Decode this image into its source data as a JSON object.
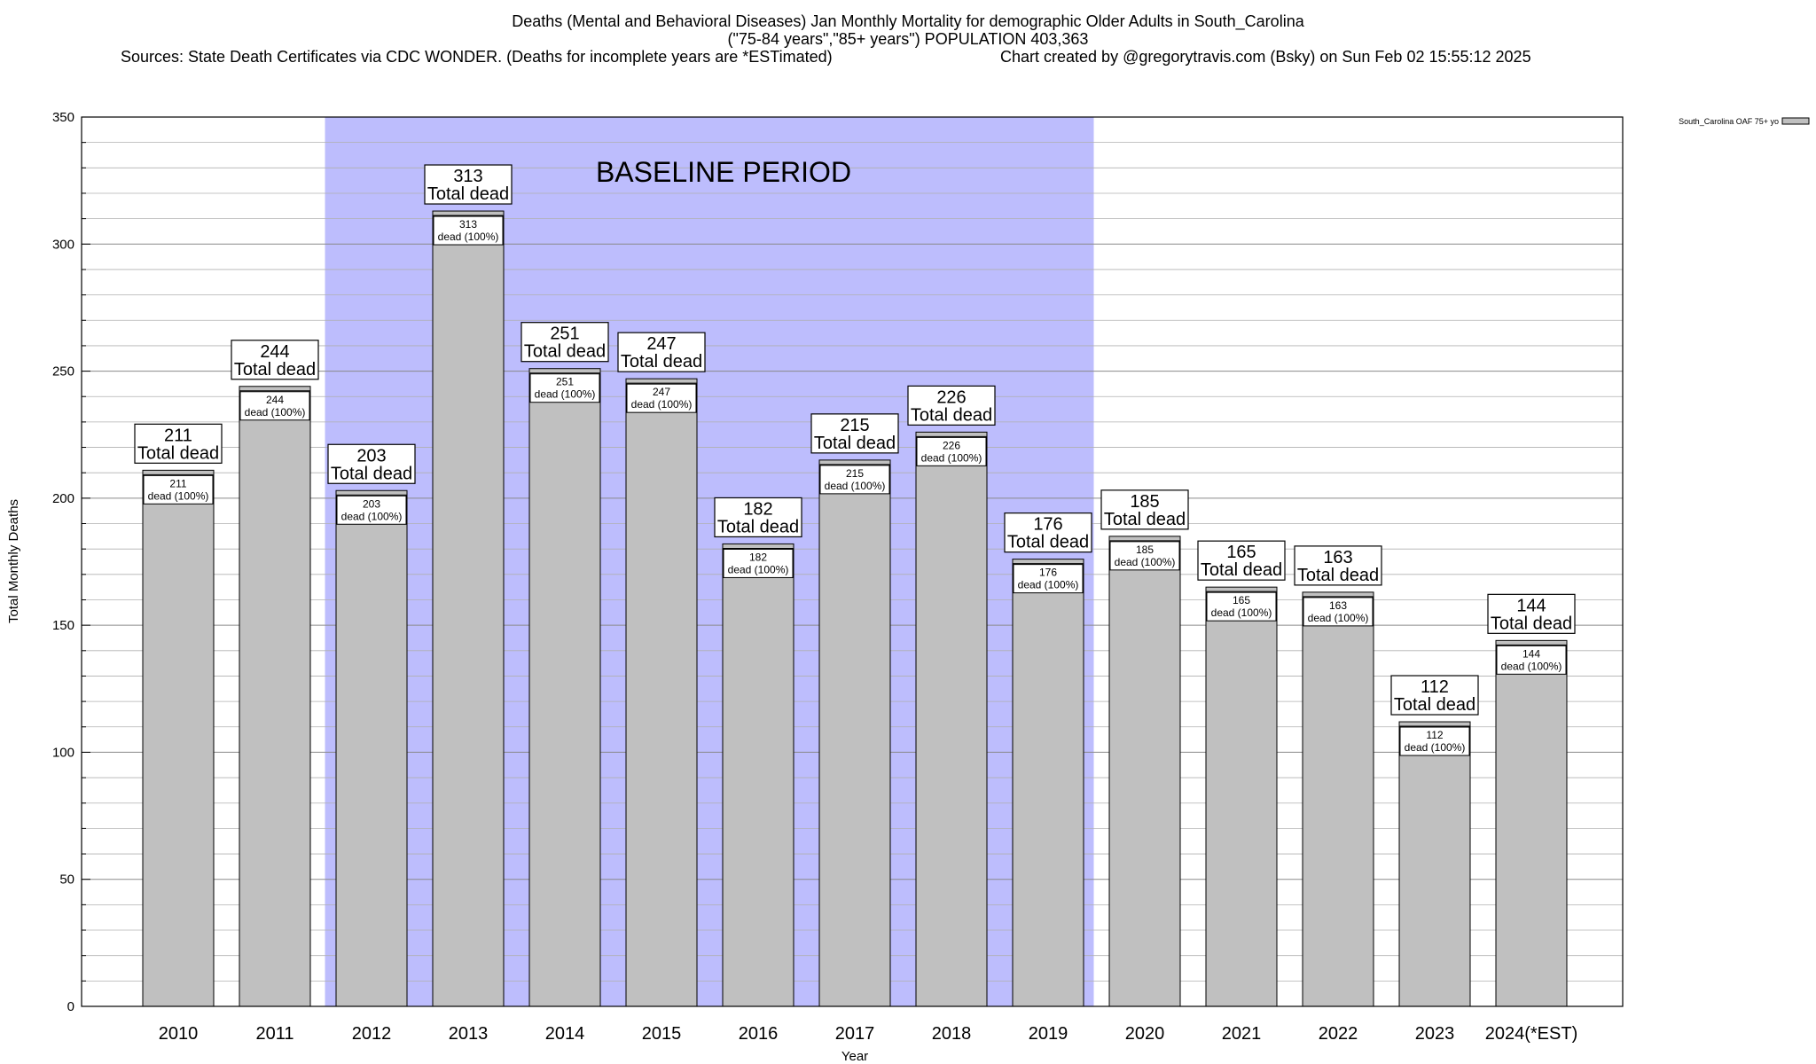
{
  "title": {
    "line1": "Deaths (Mental and Behavioral Diseases) Jan Monthly Mortality for demographic Older Adults in South_Carolina",
    "line2": "(\"75-84 years\",\"85+ years\") POPULATION 403,363",
    "line3": "Sources: State Death Certificates via CDC WONDER. (Deaths for incomplete years are *ESTimated)",
    "line4": "Chart created by @gregorytravis.com (Bsky) on Sun Feb 02 15:55:12 2025"
  },
  "chart_data": {
    "type": "bar",
    "xlabel": "Year",
    "ylabel": "Total Monthly Deaths",
    "ylim": [
      0,
      350
    ],
    "yticks": [
      0,
      50,
      100,
      150,
      200,
      250,
      300,
      350
    ],
    "categories": [
      "2010",
      "2011",
      "2012",
      "2013",
      "2014",
      "2015",
      "2016",
      "2017",
      "2018",
      "2019",
      "2020",
      "2021",
      "2022",
      "2023",
      "2024(*EST)"
    ],
    "series": [
      {
        "name": "South_Carolina OAF 75+ yo",
        "values": [
          211,
          244,
          203,
          313,
          251,
          247,
          182,
          215,
          226,
          176,
          185,
          165,
          163,
          112,
          144
        ]
      }
    ],
    "top_label_text": "Total dead",
    "inner_label_text": "dead (100%)",
    "baseline_region": {
      "label": "BASELINE PERIOD",
      "from_category": "2012",
      "to_category": "2019"
    },
    "legend_position": "top-right",
    "grid": true
  },
  "colors": {
    "bar_fill": "#c0c0c0",
    "baseline_fill": "#bdbdfd",
    "grid": "#b0b0b0"
  }
}
